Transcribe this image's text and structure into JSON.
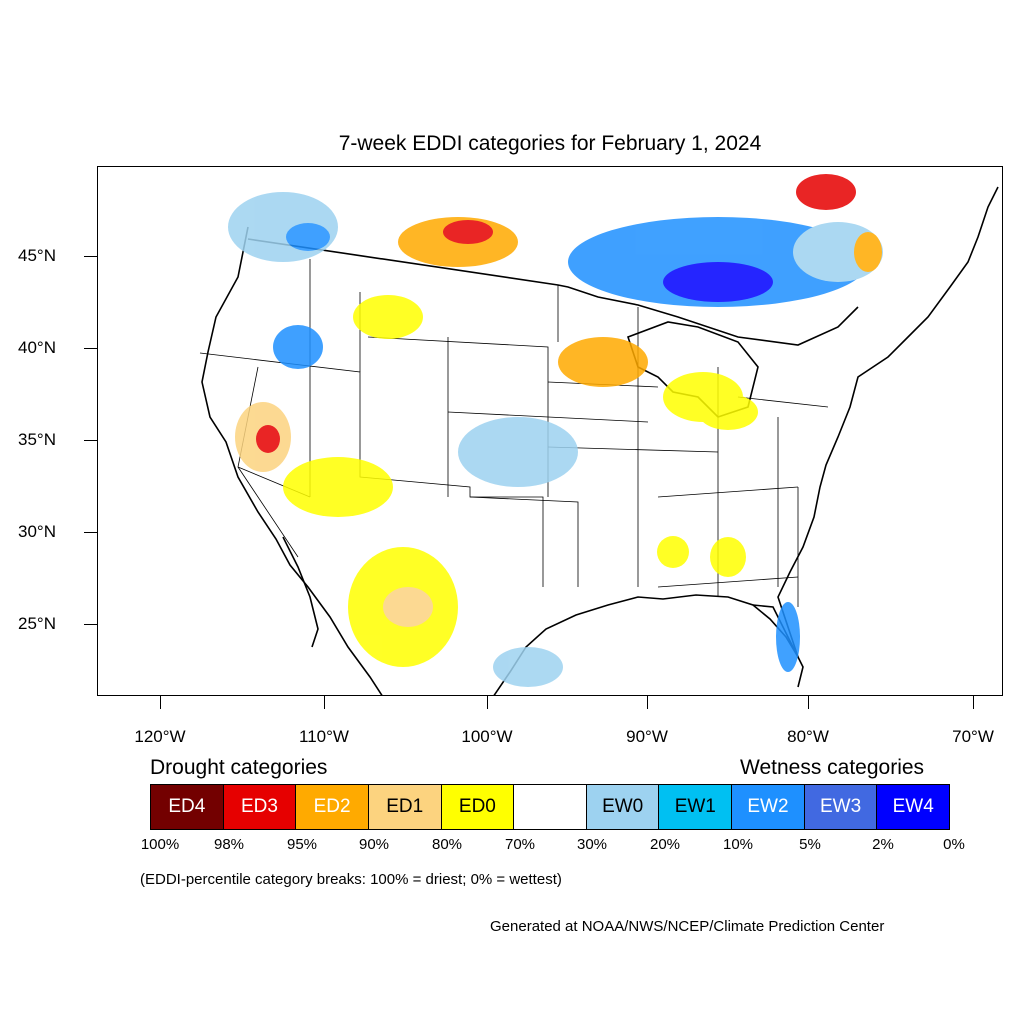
{
  "title": "7-week EDDI categories for February 1, 2024",
  "map": {
    "lat_labels": [
      "45°N",
      "40°N",
      "35°N",
      "30°N",
      "25°N"
    ],
    "lon_labels": [
      "120°W",
      "110°W",
      "100°W",
      "90°W",
      "80°W",
      "70°W"
    ]
  },
  "legend": {
    "drought_title": "Drought categories",
    "wetness_title": "Wetness categories",
    "categories": [
      {
        "label": "ED4",
        "color": "#730000",
        "text_color": "#ffffff"
      },
      {
        "label": "ED3",
        "color": "#e60000",
        "text_color": "#ffffff"
      },
      {
        "label": "ED2",
        "color": "#ffaa00",
        "text_color": "#ffffff"
      },
      {
        "label": "ED1",
        "color": "#fcd37f",
        "text_color": "#000000"
      },
      {
        "label": "ED0",
        "color": "#ffff00",
        "text_color": "#000000"
      },
      {
        "label": "",
        "color": "#ffffff",
        "text_color": "#000000"
      },
      {
        "label": "EW0",
        "color": "#9dd2f0",
        "text_color": "#000000"
      },
      {
        "label": "EW1",
        "color": "#00c0f2",
        "text_color": "#000000"
      },
      {
        "label": "EW2",
        "color": "#1e90ff",
        "text_color": "#ffffff"
      },
      {
        "label": "EW3",
        "color": "#4169e1",
        "text_color": "#ffffff"
      },
      {
        "label": "EW4",
        "color": "#0000ff",
        "text_color": "#ffffff"
      }
    ],
    "breaks": [
      "100%",
      "98%",
      "95%",
      "90%",
      "80%",
      "70%",
      "30%",
      "20%",
      "10%",
      "5%",
      "2%",
      "0%"
    ]
  },
  "note": "(EDDI-percentile category breaks: 100% = driest; 0% = wettest)",
  "credit": "Generated at NOAA/NWS/NCEP/Climate Prediction Center"
}
